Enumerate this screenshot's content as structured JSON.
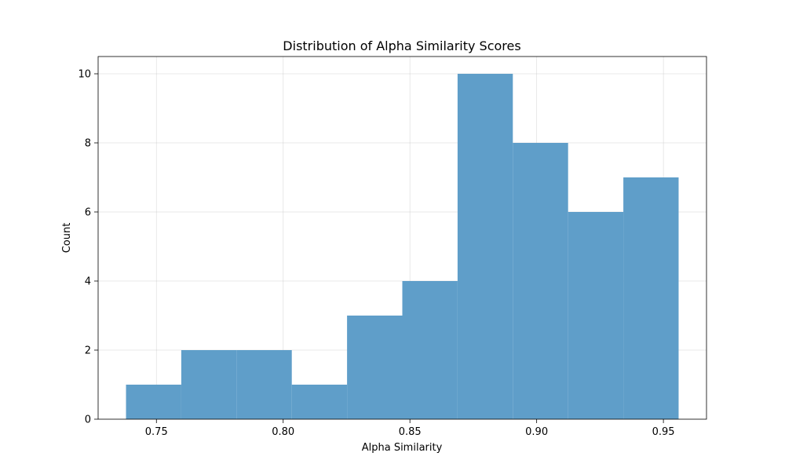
{
  "chart_data": {
    "type": "bar",
    "title": "Distribution of Alpha Similarity Scores",
    "xlabel": "Alpha Similarity",
    "ylabel": "Count",
    "bin_edges": [
      0.738,
      0.7598,
      0.7816,
      0.8034,
      0.8252,
      0.847,
      0.8688,
      0.8906,
      0.9124,
      0.9342,
      0.956
    ],
    "values": [
      1,
      2,
      2,
      1,
      3,
      4,
      10,
      8,
      6,
      7
    ],
    "bar_color": "#5f9ec9",
    "xlim": [
      0.727,
      0.967
    ],
    "ylim": [
      0,
      10.5
    ],
    "xticks": [
      "0.75",
      "0.80",
      "0.85",
      "0.90",
      "0.95"
    ],
    "yticks": [
      "0",
      "2",
      "4",
      "6",
      "8",
      "10"
    ],
    "grid": true
  }
}
